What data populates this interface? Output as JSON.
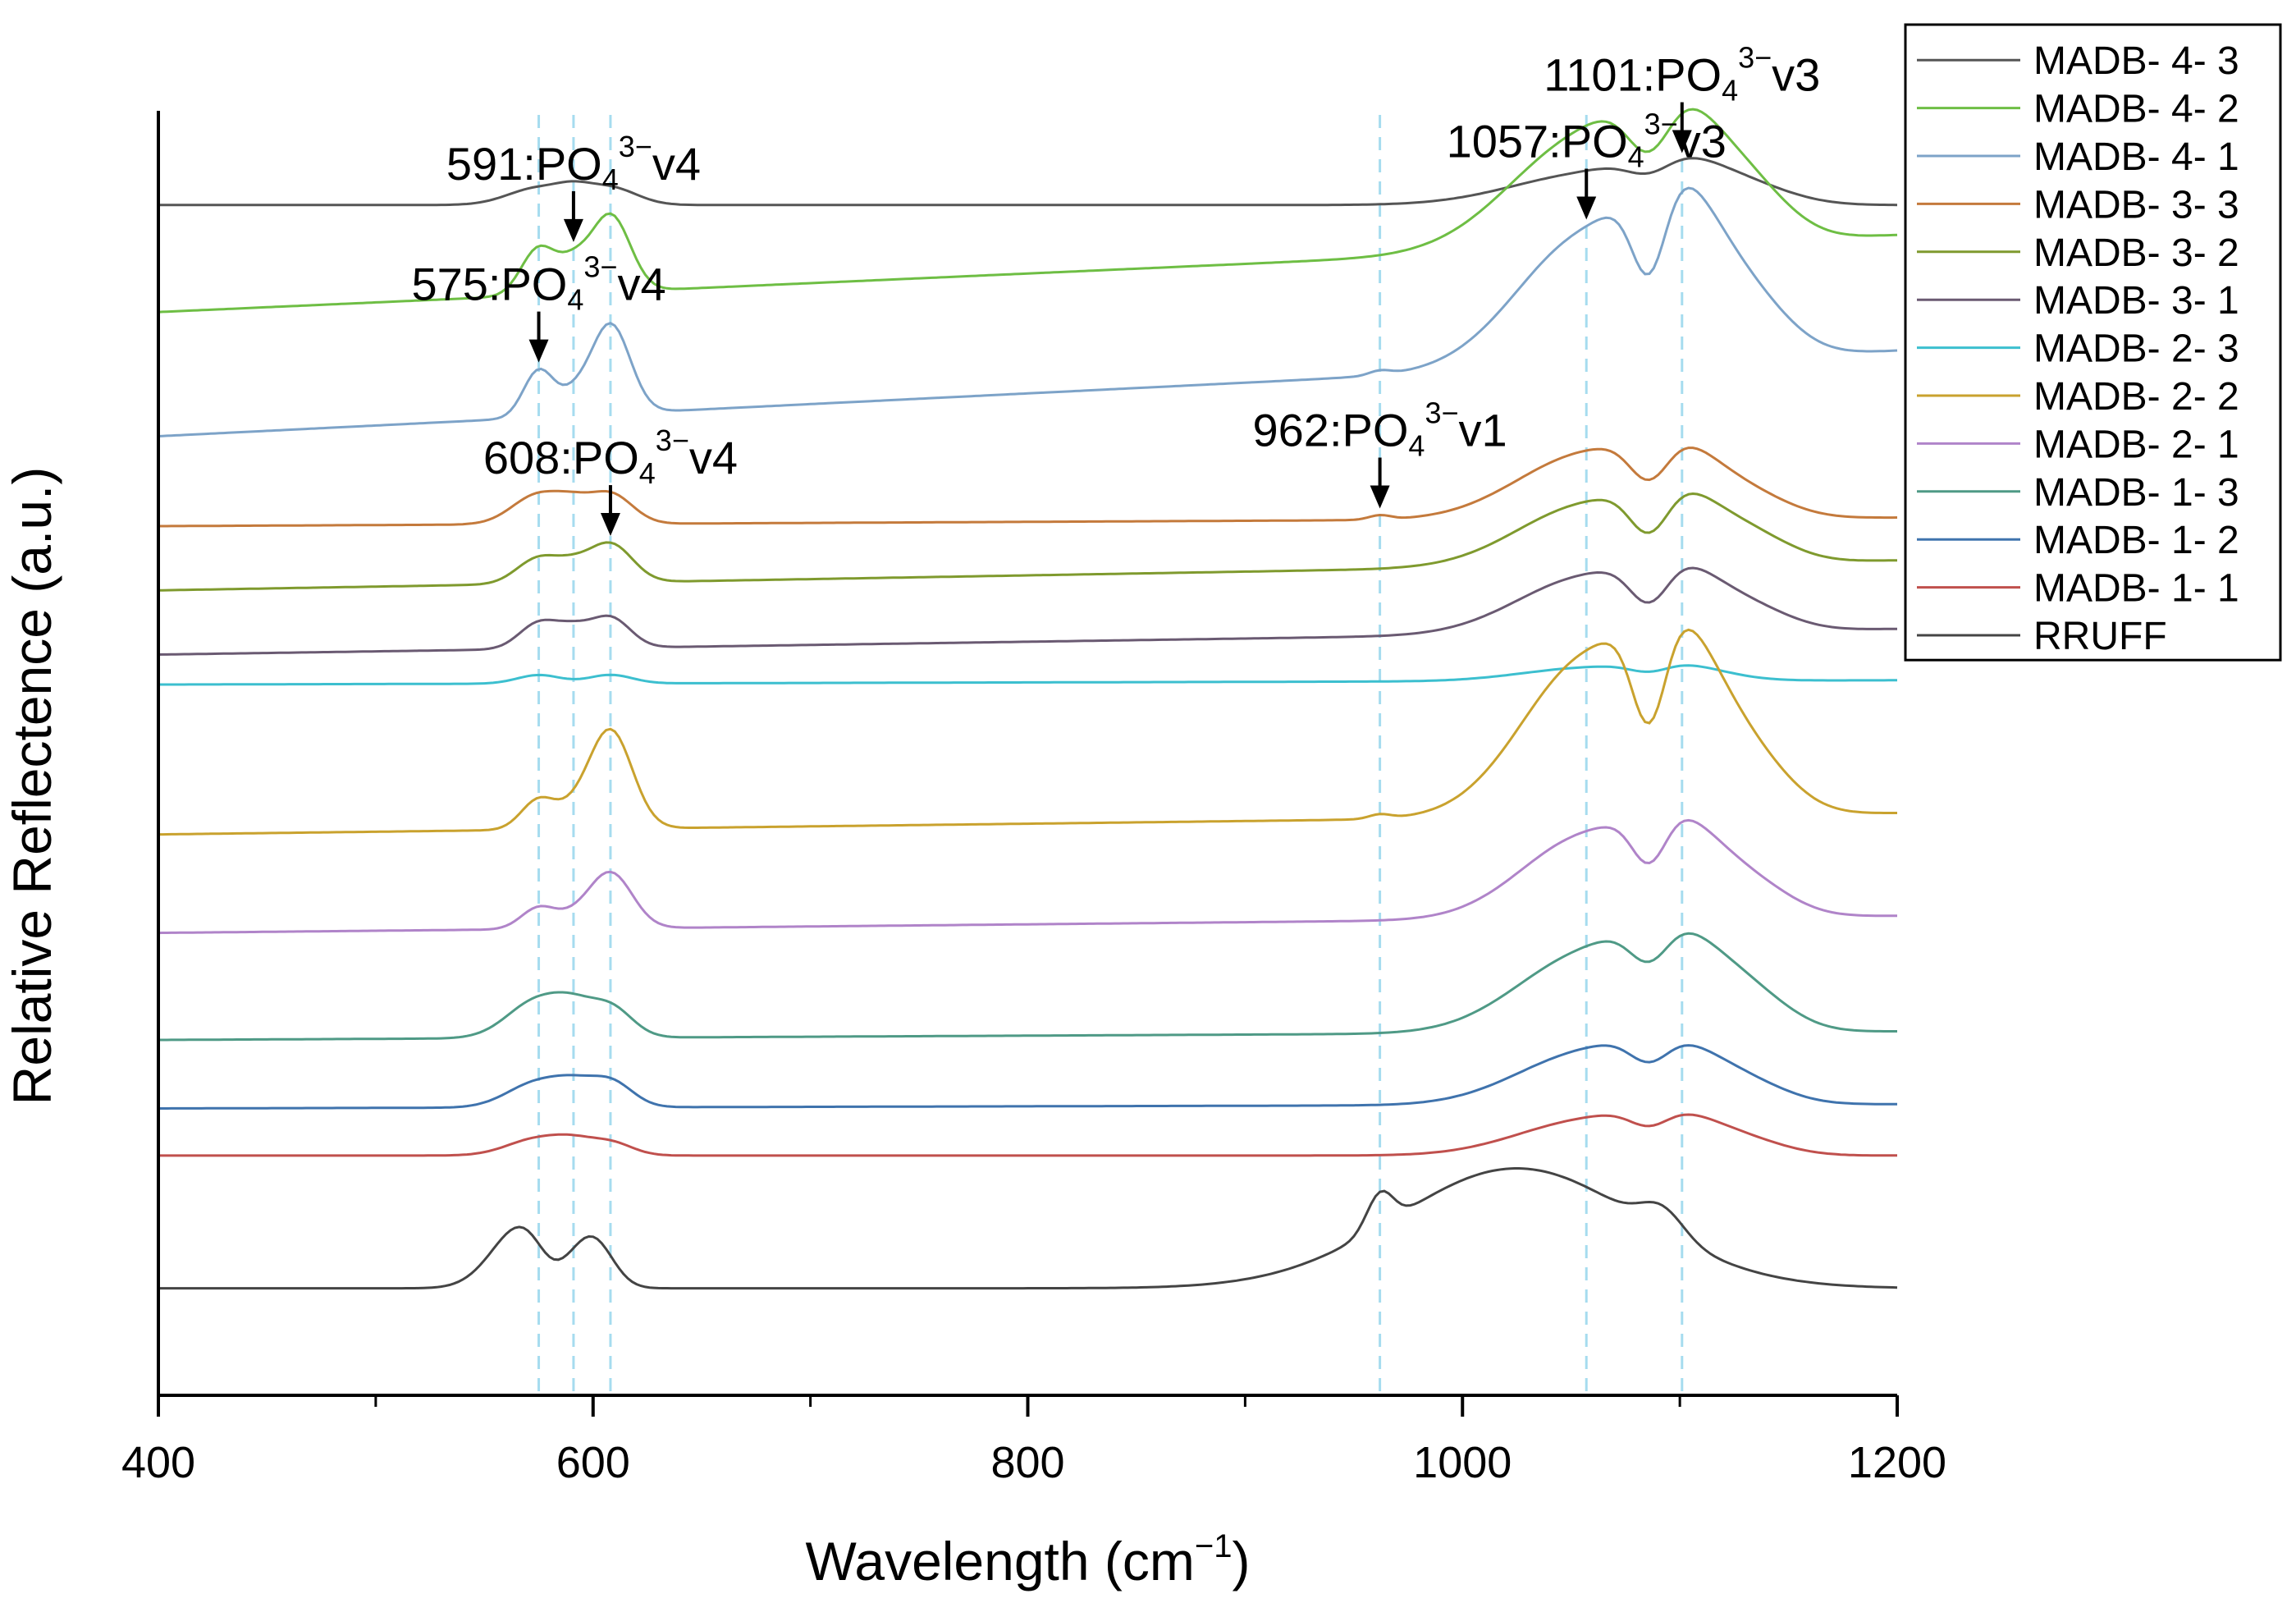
{
  "chart_data": {
    "type": "line",
    "title": "",
    "xlabel": "Wavelength (cm",
    "xlabel_sup": "−1",
    "xlabel_close": ")",
    "ylabel": "Relative Reflectence (a.u.)",
    "xlim": [
      400,
      1200
    ],
    "ylim": [
      -0.5,
      14.5
    ],
    "y_ticks_shown": false,
    "grid": false,
    "legend_position": "top-right outside",
    "x_ticks": [
      {
        "value": 400,
        "label": "400"
      },
      {
        "value": 600,
        "label": "600"
      },
      {
        "value": 800,
        "label": "800"
      },
      {
        "value": 1000,
        "label": "1000"
      },
      {
        "value": 1200,
        "label": "1200"
      }
    ],
    "x_minor_ticks": [
      500,
      700,
      900,
      1100
    ],
    "reference_lines": [
      575,
      591,
      608,
      962,
      1057,
      1101
    ],
    "reference_line_color": "#a6dcef",
    "series": [
      {
        "name": "MADB- 4- 3",
        "color": "#555555",
        "offset": 13.4,
        "slope": 0.0,
        "scale": 0.45,
        "peaks": [
          [
            575,
            0.2,
            14
          ],
          [
            591,
            0.1,
            8
          ],
          [
            608,
            0.2,
            12
          ],
          [
            1057,
            0.35,
            35
          ],
          [
            1101,
            0.4,
            22
          ],
          [
            1135,
            0.15,
            20
          ]
        ],
        "dips": [
          [
            1086,
            0.2,
            10
          ]
        ]
      },
      {
        "name": "MADB- 4- 2",
        "color": "#6ebe44",
        "offset": 12.15,
        "slope": 0.9,
        "scale": 1.0,
        "peaks": [
          [
            575,
            0.55,
            8
          ],
          [
            591,
            0.3,
            7
          ],
          [
            608,
            0.9,
            9
          ],
          [
            1057,
            1.3,
            35
          ],
          [
            1101,
            1.1,
            22
          ],
          [
            1135,
            0.4,
            18
          ]
        ],
        "dips": [
          [
            1086,
            0.7,
            10
          ]
        ]
      },
      {
        "name": "MADB- 4- 1",
        "color": "#7da3c8",
        "offset": 10.7,
        "slope": 1.0,
        "scale": 1.0,
        "peaks": [
          [
            575,
            0.55,
            7
          ],
          [
            591,
            0.2,
            7
          ],
          [
            608,
            1.05,
            9
          ],
          [
            962,
            0.05,
            5
          ],
          [
            1057,
            1.5,
            32
          ],
          [
            1101,
            1.5,
            20
          ],
          [
            1135,
            0.5,
            18
          ]
        ],
        "dips": [
          [
            1086,
            1.1,
            8
          ]
        ]
      },
      {
        "name": "MADB- 3- 3",
        "color": "#c47a3c",
        "offset": 9.65,
        "slope": 0.1,
        "scale": 0.6,
        "peaks": [
          [
            575,
            0.35,
            12
          ],
          [
            591,
            0.15,
            8
          ],
          [
            608,
            0.35,
            10
          ],
          [
            962,
            0.05,
            5
          ],
          [
            1057,
            0.75,
            32
          ],
          [
            1101,
            0.6,
            20
          ],
          [
            1135,
            0.2,
            18
          ]
        ],
        "dips": [
          [
            1086,
            0.5,
            9
          ]
        ]
      },
      {
        "name": "MADB- 3- 2",
        "color": "#7f9a2e",
        "offset": 8.9,
        "slope": 0.35,
        "scale": 0.6,
        "peaks": [
          [
            575,
            0.3,
            10
          ],
          [
            591,
            0.15,
            8
          ],
          [
            608,
            0.45,
            10
          ],
          [
            1057,
            0.7,
            32
          ],
          [
            1101,
            0.6,
            20
          ],
          [
            1135,
            0.25,
            18
          ]
        ],
        "dips": [
          [
            1086,
            0.55,
            9
          ]
        ]
      },
      {
        "name": "MADB- 3- 1",
        "color": "#6a5a72",
        "offset": 8.15,
        "slope": 0.3,
        "scale": 0.6,
        "peaks": [
          [
            575,
            0.3,
            9
          ],
          [
            591,
            0.2,
            8
          ],
          [
            608,
            0.35,
            9
          ],
          [
            1057,
            0.65,
            32
          ],
          [
            1101,
            0.55,
            20
          ],
          [
            1135,
            0.2,
            18
          ]
        ],
        "dips": [
          [
            1086,
            0.5,
            9
          ]
        ]
      },
      {
        "name": "MADB- 2- 3",
        "color": "#3cbfcf",
        "offset": 7.8,
        "slope": 0.05,
        "scale": 0.3,
        "peaks": [
          [
            575,
            0.1,
            10
          ],
          [
            608,
            0.1,
            10
          ],
          [
            1057,
            0.15,
            30
          ],
          [
            1101,
            0.15,
            20
          ]
        ],
        "dips": [
          [
            1086,
            0.1,
            9
          ]
        ]
      },
      {
        "name": "MADB- 2- 2",
        "color": "#c9a22e",
        "offset": 6.05,
        "slope": 0.25,
        "scale": 1.0,
        "peaks": [
          [
            575,
            0.35,
            8
          ],
          [
            591,
            0.15,
            8
          ],
          [
            608,
            1.15,
            10
          ],
          [
            962,
            0.05,
            5
          ],
          [
            1057,
            1.8,
            30
          ],
          [
            1101,
            1.65,
            20
          ],
          [
            1135,
            0.5,
            18
          ]
        ],
        "dips": [
          [
            1086,
            1.3,
            8
          ]
        ]
      },
      {
        "name": "MADB- 2- 1",
        "color": "#b084c9",
        "offset": 4.9,
        "slope": 0.2,
        "scale": 1.0,
        "peaks": [
          [
            575,
            0.25,
            8
          ],
          [
            591,
            0.1,
            8
          ],
          [
            608,
            0.65,
            10
          ],
          [
            1057,
            0.95,
            30
          ],
          [
            1101,
            0.85,
            20
          ],
          [
            1135,
            0.3,
            18
          ]
        ],
        "dips": [
          [
            1086,
            0.6,
            8
          ]
        ]
      },
      {
        "name": "MADB- 1- 3",
        "color": "#4f9a86",
        "offset": 3.65,
        "slope": 0.1,
        "scale": 0.8,
        "peaks": [
          [
            575,
            0.45,
            14
          ],
          [
            591,
            0.2,
            9
          ],
          [
            608,
            0.35,
            10
          ],
          [
            1057,
            0.9,
            32
          ],
          [
            1101,
            0.85,
            22
          ],
          [
            1135,
            0.3,
            18
          ]
        ],
        "dips": [
          [
            1086,
            0.45,
            9
          ]
        ]
      },
      {
        "name": "MADB- 1- 2",
        "color": "#3f73ad",
        "offset": 2.85,
        "slope": 0.05,
        "scale": 0.6,
        "peaks": [
          [
            575,
            0.3,
            14
          ],
          [
            591,
            0.15,
            9
          ],
          [
            608,
            0.3,
            10
          ],
          [
            1057,
            0.6,
            32
          ],
          [
            1101,
            0.5,
            22
          ],
          [
            1135,
            0.15,
            18
          ]
        ],
        "dips": [
          [
            1086,
            0.3,
            9
          ]
        ]
      },
      {
        "name": "MADB- 1- 1",
        "color": "#c0504d",
        "offset": 2.3,
        "slope": 0.0,
        "scale": 0.5,
        "peaks": [
          [
            575,
            0.2,
            14
          ],
          [
            591,
            0.1,
            9
          ],
          [
            608,
            0.15,
            10
          ],
          [
            1057,
            0.4,
            32
          ],
          [
            1101,
            0.35,
            22
          ],
          [
            1135,
            0.1,
            18
          ]
        ],
        "dips": [
          [
            1086,
            0.2,
            9
          ]
        ]
      },
      {
        "name": "RRUFF",
        "color": "#444444",
        "offset": 0.75,
        "slope": 0.0,
        "scale": 1.0,
        "peaks": [
          [
            568,
            0.75,
            14
          ],
          [
            600,
            0.55,
            9
          ],
          [
            962,
            0.4,
            6
          ],
          [
            1025,
            1.4,
            55
          ],
          [
            1092,
            0.3,
            10
          ]
        ],
        "dips": [
          [
            580,
            0.2,
            7
          ]
        ]
      }
    ],
    "annotations": [
      {
        "prefix": "1101:PO",
        "sub": "4",
        "sup": "3−",
        "suffix": "v3",
        "x": 1101,
        "series": "MADB- 4- 3"
      },
      {
        "prefix": "591:PO",
        "sub": "4",
        "sup": "3−",
        "suffix": "v4",
        "x": 591,
        "series": "MADB- 4- 2"
      },
      {
        "prefix": "1057:PO",
        "sub": "4",
        "sup": "3−",
        "suffix": "v3",
        "x": 1057,
        "series": "MADB- 4- 1"
      },
      {
        "prefix": "575:PO",
        "sub": "4",
        "sup": "3−",
        "suffix": "v4",
        "x": 575,
        "series": "MADB- 4- 1"
      },
      {
        "prefix": "962:PO",
        "sub": "4",
        "sup": "3−",
        "suffix": "v1",
        "x": 962,
        "series": "MADB- 3- 3"
      },
      {
        "prefix": "608:PO",
        "sub": "4",
        "sup": "3−",
        "suffix": "v4",
        "x": 608,
        "series": "MADB- 3- 2"
      }
    ]
  }
}
